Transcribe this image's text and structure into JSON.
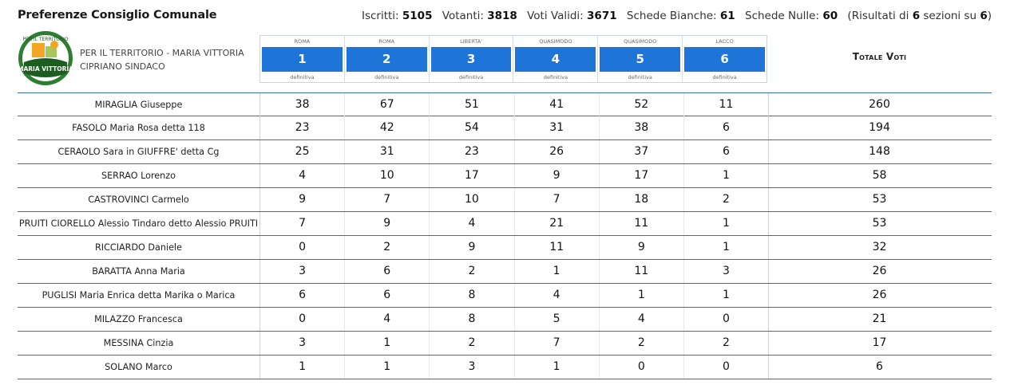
{
  "header": {
    "title": "Preferenze Consiglio Comunale",
    "stats": [
      {
        "label": "Iscritti:",
        "value": "5105"
      },
      {
        "label": "Votanti:",
        "value": "3818"
      },
      {
        "label": "Voti Validi:",
        "value": "3671"
      },
      {
        "label": "Schede Bianche:",
        "value": "61"
      },
      {
        "label": "Schede Nulle:",
        "value": "60"
      }
    ],
    "sections_note": {
      "prefix": "(Risultati di",
      "done": "6",
      "mid": "sezioni su",
      "total": "6",
      "suffix": ")"
    }
  },
  "list": {
    "name": "PER IL TERRITORIO - MARIA VITTORIA CIPRIANO SINDACO",
    "logo_text": "MARIA VITTORIA",
    "logo_top": "PER IL TERRITORIO",
    "logo_colors": {
      "ring": "#2e7d32",
      "band": "#1b5e20",
      "sun": "#f2a623",
      "text": "#ffffff"
    }
  },
  "sections": [
    {
      "location": "ROMA",
      "number": "1",
      "status": "definitiva"
    },
    {
      "location": "ROMA",
      "number": "2",
      "status": "definitiva"
    },
    {
      "location": "LIBERTA'",
      "number": "3",
      "status": "definitiva"
    },
    {
      "location": "QUASIMODO",
      "number": "4",
      "status": "definitiva"
    },
    {
      "location": "QUASIMODO",
      "number": "5",
      "status": "definitiva"
    },
    {
      "location": "LACCO",
      "number": "6",
      "status": "definitiva"
    }
  ],
  "total_header": "Totale Voti",
  "candidates": [
    {
      "name": "MIRAGLIA Giuseppe",
      "votes": [
        "38",
        "67",
        "51",
        "41",
        "52",
        "11"
      ],
      "total": "260"
    },
    {
      "name": "FASOLO Maria Rosa detta 118",
      "votes": [
        "23",
        "42",
        "54",
        "31",
        "38",
        "6"
      ],
      "total": "194"
    },
    {
      "name": "CERAOLO Sara in GIUFFRE' detta Cg",
      "votes": [
        "25",
        "31",
        "23",
        "26",
        "37",
        "6"
      ],
      "total": "148"
    },
    {
      "name": "SERRAO Lorenzo",
      "votes": [
        "4",
        "10",
        "17",
        "9",
        "17",
        "1"
      ],
      "total": "58"
    },
    {
      "name": "CASTROVINCI Carmelo",
      "votes": [
        "9",
        "7",
        "10",
        "7",
        "18",
        "2"
      ],
      "total": "53"
    },
    {
      "name": "PRUITI CIORELLO Alessio Tindaro detto Alessio PRUITI",
      "votes": [
        "7",
        "9",
        "4",
        "21",
        "11",
        "1"
      ],
      "total": "53"
    },
    {
      "name": "RICCIARDO Daniele",
      "votes": [
        "0",
        "2",
        "9",
        "11",
        "9",
        "1"
      ],
      "total": "32"
    },
    {
      "name": "BARATTA Anna Maria",
      "votes": [
        "3",
        "6",
        "2",
        "1",
        "11",
        "3"
      ],
      "total": "26"
    },
    {
      "name": "PUGLISI Maria Enrica detta Marika o Marica",
      "votes": [
        "6",
        "6",
        "8",
        "4",
        "1",
        "1"
      ],
      "total": "26"
    },
    {
      "name": "MILAZZO Francesca",
      "votes": [
        "0",
        "4",
        "8",
        "5",
        "4",
        "0"
      ],
      "total": "21"
    },
    {
      "name": "MESSINA Cinzia",
      "votes": [
        "3",
        "1",
        "2",
        "7",
        "2",
        "2"
      ],
      "total": "17"
    },
    {
      "name": "SOLANO Marco",
      "votes": [
        "1",
        "1",
        "3",
        "1",
        "0",
        "0"
      ],
      "total": "6"
    }
  ]
}
